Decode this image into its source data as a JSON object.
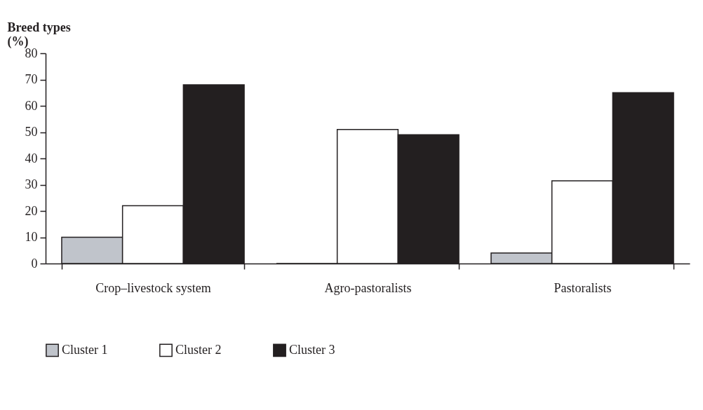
{
  "chart_data": {
    "type": "bar",
    "ylabel": "Breed types (%)",
    "categories": [
      "Crop–livestock system",
      "Agro-pastoralists",
      "Pastoralists"
    ],
    "series": [
      {
        "name": "Cluster 1",
        "color": "#c0c4cb",
        "values": [
          10,
          0,
          4
        ]
      },
      {
        "name": "Cluster 2",
        "color": "#ffffff",
        "values": [
          22,
          51,
          31.5
        ]
      },
      {
        "name": "Cluster 3",
        "color": "#231f20",
        "values": [
          68,
          49,
          65
        ]
      }
    ],
    "ylim": [
      0,
      80
    ],
    "yticks": [
      0,
      10,
      20,
      30,
      40,
      50,
      60,
      70,
      80
    ],
    "grid": false,
    "legend": "bottom"
  }
}
